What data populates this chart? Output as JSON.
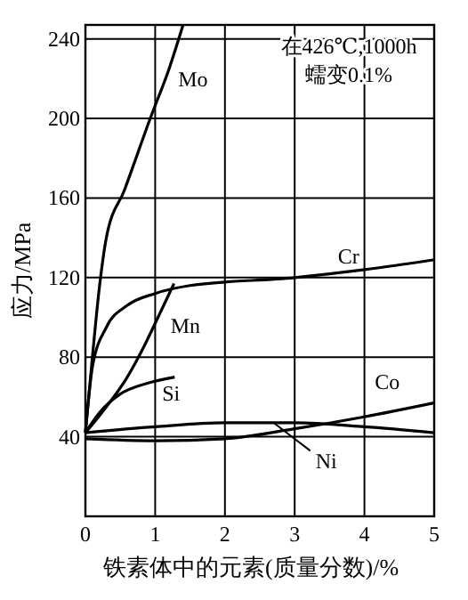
{
  "chart_data": {
    "type": "line",
    "xlabel": "铁素体中的元素(质量分数)/%",
    "ylabel": "应力/MPa",
    "xlim": [
      0,
      5
    ],
    "xticks": [
      0,
      1,
      2,
      3,
      4,
      5
    ],
    "ylim": [
      0,
      247
    ],
    "yticks": [
      40,
      80,
      120,
      160,
      200,
      240
    ],
    "grid": true,
    "legend": false,
    "marker": "none",
    "line_style": "solid",
    "annotations": [
      "在426℃,1000h",
      "蠕变0.1%"
    ],
    "series": [
      {
        "name": "Mo",
        "color": "#000000",
        "x": [
          0,
          0.1,
          0.2,
          0.3,
          0.56,
          0.94,
          1.2,
          1.4
        ],
        "values": [
          42,
          80,
          115,
          140,
          164,
          201,
          225,
          247
        ]
      },
      {
        "name": "Cr",
        "color": "#000000",
        "x": [
          0,
          0.1,
          0.3,
          0.6,
          1,
          1.5,
          3,
          4,
          5
        ],
        "values": [
          42,
          75,
          95,
          106,
          112,
          116,
          120,
          124,
          129
        ]
      },
      {
        "name": "Mn",
        "color": "#000000",
        "x": [
          0,
          0.3,
          0.6,
          0.82,
          1,
          1.27
        ],
        "values": [
          42,
          55,
          70,
          84,
          97,
          117
        ]
      },
      {
        "name": "Si",
        "color": "#000000",
        "x": [
          0,
          0.2,
          0.48,
          0.9,
          1.28
        ],
        "values": [
          42,
          52,
          61,
          67,
          70
        ]
      },
      {
        "name": "Co",
        "color": "#000000",
        "x": [
          0,
          1,
          2,
          3,
          4,
          5
        ],
        "values": [
          39,
          38,
          39,
          44,
          50,
          57
        ]
      },
      {
        "name": "Ni",
        "color": "#000000",
        "x": [
          0,
          1,
          2,
          3,
          4,
          5
        ],
        "values": [
          42,
          45,
          47,
          47,
          45,
          42
        ]
      }
    ]
  }
}
